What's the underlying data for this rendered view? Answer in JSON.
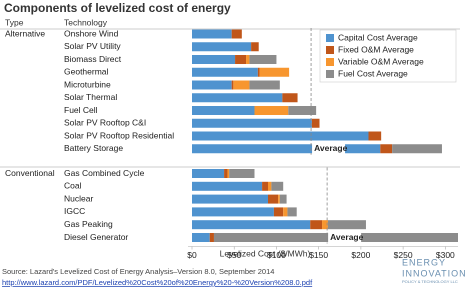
{
  "chart_data": {
    "type": "stacked_bar",
    "title": "Components of levelized cost of energy",
    "type_header": "Type",
    "category_header": "Technology",
    "row_types": [
      "Alternative",
      null,
      null,
      null,
      null,
      null,
      null,
      null,
      null,
      null,
      "Conventional",
      null,
      null,
      null,
      null,
      null
    ],
    "categories": [
      "Onshore Wind",
      "Solar PV Utility",
      "Biomass Direct",
      "Geothermal",
      "Microturbine",
      "Solar Thermal",
      "Fuel Cell",
      "Solar PV Rooftop C&I",
      "Solar PV Rooftop Residential",
      "Battery Storage",
      "Gas Combined Cycle",
      "Coal",
      "Nuclear",
      "IGCC",
      "Gas Peaking",
      "Diesel Generator"
    ],
    "series": [
      {
        "name": "Capital Cost Average",
        "color": "#4f93cf",
        "values": [
          47,
          70,
          51,
          78,
          47,
          107,
          74,
          142,
          209,
          223,
          38,
          83,
          90,
          97,
          140,
          21
        ]
      },
      {
        "name": "Fixed O&M Average",
        "color": "#c0561a",
        "values": [
          12,
          9,
          13,
          2,
          2,
          18,
          0,
          9,
          15,
          14,
          4,
          7,
          12,
          11,
          14,
          5
        ]
      },
      {
        "name": "Variable O&M Average",
        "color": "#f7962f",
        "values": [
          0,
          0,
          4,
          35,
          19,
          0,
          40,
          0,
          0,
          0,
          2,
          4,
          2,
          5,
          7,
          0
        ]
      },
      {
        "name": "Fuel Cost Average",
        "color": "#8c8c8c",
        "values": [
          0,
          0,
          32,
          0,
          36,
          0,
          33,
          0,
          0,
          59,
          30,
          14,
          8,
          11,
          45,
          289
        ]
      }
    ],
    "annotations": [
      {
        "text": "Average",
        "value": 141
      },
      {
        "text": "Average",
        "value": 160
      }
    ],
    "xlim": [
      0,
      315
    ],
    "xticks": [
      {
        "value": 0,
        "label": "$0"
      },
      {
        "value": 50,
        "label": "$50"
      },
      {
        "value": 100,
        "label": "$100"
      },
      {
        "value": 150,
        "label": "$150"
      },
      {
        "value": 200,
        "label": "$200"
      },
      {
        "value": 250,
        "label": "$250"
      },
      {
        "value": 300,
        "label": "$300"
      }
    ],
    "xlabel": "Levelized Cost ($/MWh)",
    "source": "Source: Lazard's Levelized Cost of Energy Analysis–Version 8.0, September 2014",
    "link": "http://www.lazard.com/PDF/Levelized%20Cost%20of%20Energy%20-%20Version%208.0.pdf",
    "logo": [
      "ENERGY",
      "INNOVATION",
      "POLICY & TECHNOLOGY LLC"
    ]
  }
}
